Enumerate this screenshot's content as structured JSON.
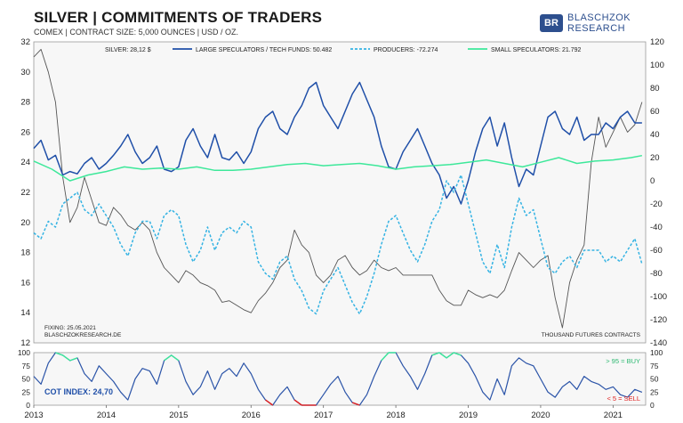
{
  "header": {
    "title": "SILVER | COMMITMENTS OF TRADERS",
    "subtitle": "COMEX | CONTRACT SIZE: 5,000 OUNCES | USD / OZ."
  },
  "logo": {
    "line1": "BLASCHZOK",
    "line2": "RESEARCH"
  },
  "chart_data": [
    {
      "type": "line",
      "name": "main",
      "x_axis": {
        "range": [
          2013.0,
          2021.45
        ],
        "tick_labels": [
          "2013",
          "2014",
          "2015",
          "2016",
          "2017",
          "2018",
          "2019",
          "2020",
          "2021"
        ],
        "tick_values": [
          2013,
          2014,
          2015,
          2016,
          2017,
          2018,
          2019,
          2020,
          2021
        ]
      },
      "y_left": {
        "range": [
          12,
          32
        ],
        "ticks": [
          12,
          14,
          16,
          18,
          20,
          22,
          24,
          26,
          28,
          30,
          32
        ]
      },
      "y_right": {
        "range": [
          -140,
          120
        ],
        "ticks": [
          -140,
          -120,
          -100,
          -80,
          -60,
          -40,
          -20,
          0,
          20,
          40,
          60,
          80,
          100,
          120
        ]
      },
      "legend_position": "top",
      "series": [
        {
          "name": "SILVER: 28,12 $",
          "axis": "left",
          "color": "#555555",
          "style": "solid",
          "x": [
            2013.0,
            2013.1,
            2013.2,
            2013.3,
            2013.4,
            2013.5,
            2013.6,
            2013.7,
            2013.8,
            2013.9,
            2014.0,
            2014.1,
            2014.2,
            2014.3,
            2014.4,
            2014.5,
            2014.6,
            2014.7,
            2014.8,
            2014.9,
            2015.0,
            2015.1,
            2015.2,
            2015.3,
            2015.4,
            2015.5,
            2015.6,
            2015.7,
            2015.8,
            2015.9,
            2016.0,
            2016.1,
            2016.2,
            2016.3,
            2016.4,
            2016.5,
            2016.6,
            2016.7,
            2016.8,
            2016.9,
            2017.0,
            2017.1,
            2017.2,
            2017.3,
            2017.4,
            2017.5,
            2017.6,
            2017.7,
            2017.8,
            2017.9,
            2018.0,
            2018.1,
            2018.2,
            2018.3,
            2018.4,
            2018.5,
            2018.6,
            2018.7,
            2018.8,
            2018.9,
            2019.0,
            2019.1,
            2019.2,
            2019.3,
            2019.4,
            2019.5,
            2019.6,
            2019.7,
            2019.8,
            2019.9,
            2020.0,
            2020.1,
            2020.2,
            2020.3,
            2020.4,
            2020.5,
            2020.6,
            2020.7,
            2020.8,
            2020.9,
            2021.0,
            2021.1,
            2021.2,
            2021.3,
            2021.4
          ],
          "values": [
            31,
            31.5,
            30,
            28,
            23,
            20,
            21,
            23,
            21.5,
            20,
            19.8,
            21,
            20.5,
            19.8,
            19.5,
            20,
            19.5,
            18,
            17,
            16.5,
            16,
            16.8,
            16.5,
            16,
            15.8,
            15.5,
            14.7,
            14.8,
            14.5,
            14.2,
            14,
            14.8,
            15.3,
            16,
            17,
            17.5,
            19.5,
            18.5,
            18,
            16.5,
            16,
            16.5,
            17.5,
            17.8,
            17,
            16.5,
            16.8,
            17.5,
            17,
            16.8,
            17,
            16.5,
            16.5,
            16.5,
            16.5,
            16.5,
            15.5,
            14.8,
            14.5,
            14.5,
            15.5,
            15.2,
            15,
            15.2,
            15,
            15.5,
            16.8,
            18,
            17.5,
            17,
            17.5,
            17.8,
            15,
            13,
            16,
            17.5,
            18.5,
            24,
            27,
            25,
            26,
            27,
            26,
            26.5,
            28
          ]
        },
        {
          "name": "LARGE SPECULATORS / TECH FUNDS: 50.482",
          "axis": "right",
          "color": "#1f4fa8",
          "style": "solid",
          "x": [
            2013.0,
            2013.1,
            2013.2,
            2013.3,
            2013.4,
            2013.5,
            2013.6,
            2013.7,
            2013.8,
            2013.9,
            2014.0,
            2014.1,
            2014.2,
            2014.3,
            2014.4,
            2014.5,
            2014.6,
            2014.7,
            2014.8,
            2014.9,
            2015.0,
            2015.1,
            2015.2,
            2015.3,
            2015.4,
            2015.5,
            2015.6,
            2015.7,
            2015.8,
            2015.9,
            2016.0,
            2016.1,
            2016.2,
            2016.3,
            2016.4,
            2016.5,
            2016.6,
            2016.7,
            2016.8,
            2016.9,
            2017.0,
            2017.1,
            2017.2,
            2017.3,
            2017.4,
            2017.5,
            2017.6,
            2017.7,
            2017.8,
            2017.9,
            2018.0,
            2018.1,
            2018.2,
            2018.3,
            2018.4,
            2018.5,
            2018.6,
            2018.7,
            2018.8,
            2018.9,
            2019.0,
            2019.1,
            2019.2,
            2019.3,
            2019.4,
            2019.5,
            2019.6,
            2019.7,
            2019.8,
            2019.9,
            2020.0,
            2020.1,
            2020.2,
            2020.3,
            2020.4,
            2020.5,
            2020.6,
            2020.7,
            2020.8,
            2020.9,
            2021.0,
            2021.1,
            2021.2,
            2021.3,
            2021.4
          ],
          "values": [
            28,
            35,
            18,
            22,
            5,
            8,
            6,
            15,
            20,
            10,
            15,
            22,
            30,
            40,
            25,
            15,
            20,
            30,
            10,
            8,
            12,
            35,
            45,
            30,
            20,
            40,
            20,
            18,
            25,
            15,
            25,
            45,
            55,
            60,
            45,
            40,
            55,
            65,
            80,
            85,
            65,
            55,
            45,
            60,
            75,
            85,
            70,
            55,
            30,
            12,
            10,
            25,
            35,
            45,
            30,
            15,
            5,
            -15,
            -5,
            -20,
            0,
            25,
            45,
            55,
            30,
            50,
            20,
            -5,
            10,
            5,
            30,
            55,
            60,
            45,
            40,
            55,
            35,
            40,
            40,
            50,
            45,
            55,
            60,
            50,
            50
          ]
        },
        {
          "name": "PRODUCERS: -72.274",
          "axis": "right",
          "color": "#35b3e3",
          "style": "dashed",
          "x": [
            2013.0,
            2013.1,
            2013.2,
            2013.3,
            2013.4,
            2013.5,
            2013.6,
            2013.7,
            2013.8,
            2013.9,
            2014.0,
            2014.1,
            2014.2,
            2014.3,
            2014.4,
            2014.5,
            2014.6,
            2014.7,
            2014.8,
            2014.9,
            2015.0,
            2015.1,
            2015.2,
            2015.3,
            2015.4,
            2015.5,
            2015.6,
            2015.7,
            2015.8,
            2015.9,
            2016.0,
            2016.1,
            2016.2,
            2016.3,
            2016.4,
            2016.5,
            2016.6,
            2016.7,
            2016.8,
            2016.9,
            2017.0,
            2017.1,
            2017.2,
            2017.3,
            2017.4,
            2017.5,
            2017.6,
            2017.7,
            2017.8,
            2017.9,
            2018.0,
            2018.1,
            2018.2,
            2018.3,
            2018.4,
            2018.5,
            2018.6,
            2018.7,
            2018.8,
            2018.9,
            2019.0,
            2019.1,
            2019.2,
            2019.3,
            2019.4,
            2019.5,
            2019.6,
            2019.7,
            2019.8,
            2019.9,
            2020.0,
            2020.1,
            2020.2,
            2020.3,
            2020.4,
            2020.5,
            2020.6,
            2020.7,
            2020.8,
            2020.9,
            2021.0,
            2021.1,
            2021.2,
            2021.3,
            2021.4
          ],
          "values": [
            -45,
            -50,
            -35,
            -40,
            -20,
            -15,
            -10,
            -25,
            -30,
            -20,
            -30,
            -40,
            -55,
            -65,
            -45,
            -35,
            -35,
            -50,
            -30,
            -25,
            -30,
            -55,
            -70,
            -60,
            -40,
            -60,
            -45,
            -40,
            -45,
            -35,
            -40,
            -70,
            -80,
            -85,
            -70,
            -65,
            -85,
            -95,
            -110,
            -115,
            -95,
            -85,
            -75,
            -90,
            -105,
            -115,
            -100,
            -80,
            -55,
            -35,
            -30,
            -45,
            -60,
            -70,
            -55,
            -35,
            -25,
            0,
            -10,
            5,
            -20,
            -45,
            -70,
            -80,
            -55,
            -75,
            -40,
            -15,
            -30,
            -25,
            -50,
            -75,
            -80,
            -70,
            -65,
            -75,
            -60,
            -60,
            -60,
            -70,
            -65,
            -70,
            -60,
            -50,
            -72
          ]
        },
        {
          "name": "SMALL SPECULATORS: 21.792",
          "axis": "right",
          "color": "#3de89a",
          "style": "solid",
          "x": [
            2013.0,
            2013.25,
            2013.5,
            2013.75,
            2014.0,
            2014.25,
            2014.5,
            2014.75,
            2015.0,
            2015.25,
            2015.5,
            2015.75,
            2016.0,
            2016.25,
            2016.5,
            2016.75,
            2017.0,
            2017.25,
            2017.5,
            2017.75,
            2018.0,
            2018.25,
            2018.5,
            2018.75,
            2019.0,
            2019.25,
            2019.5,
            2019.75,
            2020.0,
            2020.25,
            2020.5,
            2020.75,
            2021.0,
            2021.25,
            2021.4
          ],
          "values": [
            17,
            10,
            0,
            5,
            8,
            12,
            10,
            11,
            10,
            12,
            9,
            9,
            10,
            12,
            14,
            15,
            13,
            14,
            15,
            13,
            10,
            12,
            13,
            14,
            16,
            18,
            15,
            12,
            16,
            20,
            15,
            17,
            18,
            20,
            21.8
          ]
        }
      ],
      "annotations": [
        "FIXING: 25.05.2021",
        "BLASCHZOKRESEARCH.DE",
        "THOUSAND FUTURES CONTRACTS"
      ]
    },
    {
      "type": "line",
      "name": "cot-index",
      "label": "COT INDEX: 24,70",
      "y_range": [
        0,
        100
      ],
      "y_ticks": [
        0,
        25,
        50,
        75,
        100
      ],
      "thresholds": {
        "buy_level": 95,
        "buy_label": "> 95 = BUY",
        "sell_level": 5,
        "sell_label": "< 5 = SELL"
      },
      "colors": {
        "line": "#2b54a8",
        "buy": "#3de89a",
        "sell": "#e02020"
      },
      "x": [
        2013.0,
        2013.1,
        2013.2,
        2013.3,
        2013.4,
        2013.5,
        2013.6,
        2013.7,
        2013.8,
        2013.9,
        2014.0,
        2014.1,
        2014.2,
        2014.3,
        2014.4,
        2014.5,
        2014.6,
        2014.7,
        2014.8,
        2014.9,
        2015.0,
        2015.1,
        2015.2,
        2015.3,
        2015.4,
        2015.5,
        2015.6,
        2015.7,
        2015.8,
        2015.9,
        2016.0,
        2016.1,
        2016.2,
        2016.3,
        2016.4,
        2016.5,
        2016.6,
        2016.7,
        2016.8,
        2016.9,
        2017.0,
        2017.1,
        2017.2,
        2017.3,
        2017.4,
        2017.5,
        2017.6,
        2017.7,
        2017.8,
        2017.9,
        2018.0,
        2018.1,
        2018.2,
        2018.3,
        2018.4,
        2018.5,
        2018.6,
        2018.7,
        2018.8,
        2018.9,
        2019.0,
        2019.1,
        2019.2,
        2019.3,
        2019.4,
        2019.5,
        2019.6,
        2019.7,
        2019.8,
        2019.9,
        2020.0,
        2020.1,
        2020.2,
        2020.3,
        2020.4,
        2020.5,
        2020.6,
        2020.7,
        2020.8,
        2020.9,
        2021.0,
        2021.1,
        2021.2,
        2021.3,
        2021.4
      ],
      "values": [
        55,
        40,
        80,
        100,
        95,
        85,
        90,
        60,
        45,
        75,
        60,
        45,
        25,
        10,
        50,
        70,
        65,
        40,
        85,
        95,
        85,
        45,
        20,
        35,
        65,
        30,
        60,
        70,
        55,
        80,
        60,
        30,
        10,
        0,
        20,
        35,
        10,
        0,
        0,
        0,
        20,
        40,
        55,
        25,
        5,
        0,
        20,
        55,
        85,
        100,
        100,
        75,
        55,
        30,
        60,
        95,
        100,
        90,
        100,
        95,
        80,
        55,
        25,
        10,
        50,
        20,
        75,
        90,
        80,
        75,
        50,
        25,
        15,
        35,
        45,
        30,
        55,
        45,
        40,
        30,
        35,
        20,
        15,
        30,
        24.7
      ]
    }
  ]
}
